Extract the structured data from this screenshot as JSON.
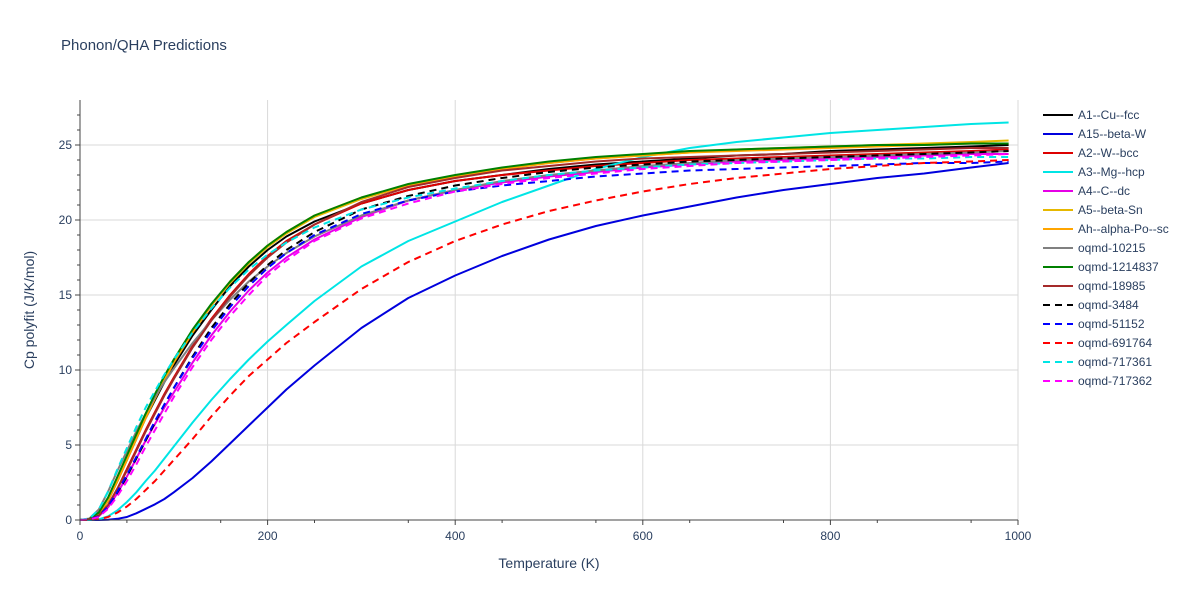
{
  "chart_data": {
    "type": "line",
    "title": "Phonon/QHA Predictions",
    "xlabel": "Temperature (K)",
    "ylabel": "Cp polyfit (J/K/mol)",
    "xlim": [
      0,
      1000
    ],
    "ylim": [
      0,
      28
    ],
    "x_ticks": [
      0,
      200,
      400,
      600,
      800,
      1000
    ],
    "y_ticks": [
      0,
      5,
      10,
      15,
      20,
      25
    ],
    "grid": true,
    "legend_position": "right",
    "x": [
      0,
      10,
      20,
      30,
      40,
      50,
      60,
      70,
      80,
      90,
      100,
      120,
      140,
      160,
      180,
      200,
      220,
      250,
      300,
      350,
      400,
      450,
      500,
      550,
      600,
      650,
      700,
      750,
      800,
      850,
      900,
      950,
      990
    ],
    "series": [
      {
        "name": "A1--Cu--fcc",
        "color": "#000000",
        "dash": "solid",
        "values": [
          0,
          0.05,
          0.4,
          1.3,
          2.6,
          4.0,
          5.4,
          6.8,
          8.0,
          9.2,
          10.3,
          12.3,
          14.0,
          15.6,
          16.9,
          18.0,
          18.9,
          19.9,
          21.1,
          22.0,
          22.6,
          23.0,
          23.4,
          23.7,
          23.9,
          24.1,
          24.3,
          24.4,
          24.6,
          24.7,
          24.8,
          24.9,
          25.0
        ]
      },
      {
        "name": "A15--beta-W",
        "color": "#0000dd",
        "dash": "solid",
        "values": [
          0,
          0,
          0,
          0.02,
          0.08,
          0.2,
          0.45,
          0.75,
          1.05,
          1.4,
          1.85,
          2.8,
          3.9,
          5.1,
          6.3,
          7.5,
          8.7,
          10.3,
          12.8,
          14.8,
          16.3,
          17.6,
          18.7,
          19.6,
          20.3,
          20.9,
          21.5,
          22.0,
          22.4,
          22.8,
          23.1,
          23.5,
          23.8
        ]
      },
      {
        "name": "A2--W--bcc",
        "color": "#dd0000",
        "dash": "solid",
        "values": [
          0,
          0.04,
          0.3,
          1.0,
          2.1,
          3.4,
          4.7,
          6.0,
          7.2,
          8.4,
          9.5,
          11.6,
          13.4,
          15.0,
          16.4,
          17.6,
          18.6,
          19.7,
          21.1,
          22.0,
          22.6,
          23.0,
          23.3,
          23.6,
          23.8,
          24.0,
          24.1,
          24.2,
          24.3,
          24.4,
          24.5,
          24.6,
          24.7
        ]
      },
      {
        "name": "A3--Mg--hcp",
        "color": "#00e5e5",
        "dash": "solid",
        "values": [
          0,
          0,
          0.05,
          0.25,
          0.65,
          1.2,
          1.85,
          2.6,
          3.3,
          4.1,
          4.9,
          6.5,
          8.0,
          9.4,
          10.7,
          11.9,
          13.0,
          14.6,
          16.9,
          18.6,
          19.9,
          21.2,
          22.3,
          23.4,
          24.2,
          24.8,
          25.2,
          25.5,
          25.8,
          26.0,
          26.2,
          26.4,
          26.5
        ]
      },
      {
        "name": "A4--C--dc",
        "color": "#e600e6",
        "dash": "solid",
        "values": [
          0,
          0.03,
          0.25,
          0.85,
          1.8,
          2.9,
          4.1,
          5.3,
          6.4,
          7.5,
          8.5,
          10.5,
          12.3,
          13.9,
          15.3,
          16.5,
          17.5,
          18.7,
          20.2,
          21.3,
          22.0,
          22.5,
          22.9,
          23.2,
          23.5,
          23.7,
          23.9,
          24.0,
          24.1,
          24.2,
          24.3,
          24.4,
          24.4
        ]
      },
      {
        "name": "A5--beta-Sn",
        "color": "#e6b800",
        "dash": "solid",
        "values": [
          0,
          0.06,
          0.45,
          1.4,
          2.8,
          4.2,
          5.6,
          7.0,
          8.3,
          9.5,
          10.6,
          12.6,
          14.3,
          15.8,
          17.1,
          18.2,
          19.1,
          20.2,
          21.4,
          22.3,
          22.9,
          23.4,
          23.8,
          24.1,
          24.3,
          24.5,
          24.7,
          24.8,
          24.9,
          25.0,
          25.1,
          25.2,
          25.3
        ]
      },
      {
        "name": "Ah--alpha-Po--sc",
        "color": "#ffa500",
        "dash": "solid",
        "values": [
          0,
          0.05,
          0.4,
          1.3,
          2.6,
          4.0,
          5.4,
          6.8,
          8.1,
          9.3,
          10.5,
          12.5,
          14.3,
          15.9,
          17.2,
          18.3,
          19.2,
          20.3,
          21.5,
          22.3,
          22.9,
          23.4,
          23.8,
          24.1,
          24.3,
          24.5,
          24.6,
          24.7,
          24.8,
          24.9,
          25.0,
          25.1,
          25.1
        ]
      },
      {
        "name": "oqmd-10215",
        "color": "#808080",
        "dash": "solid",
        "values": [
          0,
          0.1,
          0.7,
          1.9,
          3.3,
          4.6,
          5.9,
          7.1,
          8.2,
          9.2,
          10.1,
          11.8,
          13.3,
          14.7,
          15.9,
          16.9,
          17.8,
          18.9,
          20.3,
          21.3,
          22.0,
          22.6,
          23.0,
          23.3,
          23.6,
          23.8,
          24.0,
          24.1,
          24.2,
          24.3,
          24.4,
          24.5,
          24.6
        ]
      },
      {
        "name": "oqmd-1214837",
        "color": "#008000",
        "dash": "solid",
        "values": [
          0,
          0.06,
          0.5,
          1.5,
          2.9,
          4.3,
          5.7,
          7.1,
          8.4,
          9.6,
          10.7,
          12.7,
          14.4,
          15.9,
          17.2,
          18.3,
          19.2,
          20.3,
          21.5,
          22.4,
          23.0,
          23.5,
          23.9,
          24.2,
          24.4,
          24.6,
          24.7,
          24.8,
          24.9,
          25.0,
          25.0,
          25.1,
          25.1
        ]
      },
      {
        "name": "oqmd-18985",
        "color": "#a52a2a",
        "dash": "solid",
        "values": [
          0,
          0.04,
          0.3,
          1.0,
          2.1,
          3.3,
          4.6,
          5.9,
          7.1,
          8.3,
          9.4,
          11.5,
          13.3,
          14.9,
          16.3,
          17.5,
          18.5,
          19.7,
          21.2,
          22.2,
          22.8,
          23.3,
          23.6,
          23.9,
          24.1,
          24.2,
          24.3,
          24.4,
          24.5,
          24.6,
          24.7,
          24.8,
          24.8
        ]
      },
      {
        "name": "oqmd-3484",
        "color": "#000000",
        "dash": "dash",
        "values": [
          0,
          0.03,
          0.25,
          0.85,
          1.8,
          2.9,
          4.1,
          5.3,
          6.5,
          7.7,
          8.8,
          10.9,
          12.8,
          14.4,
          15.8,
          17.0,
          18.0,
          19.2,
          20.7,
          21.6,
          22.3,
          22.8,
          23.2,
          23.5,
          23.7,
          23.9,
          24.0,
          24.1,
          24.2,
          24.3,
          24.4,
          24.5,
          24.6
        ]
      },
      {
        "name": "oqmd-51152",
        "color": "#0000ff",
        "dash": "dash",
        "values": [
          0,
          0.03,
          0.25,
          0.9,
          1.9,
          3.0,
          4.2,
          5.4,
          6.6,
          7.7,
          8.8,
          10.8,
          12.6,
          14.2,
          15.6,
          16.8,
          17.8,
          19.0,
          20.4,
          21.3,
          21.9,
          22.3,
          22.6,
          22.9,
          23.1,
          23.3,
          23.4,
          23.5,
          23.6,
          23.7,
          23.8,
          23.8,
          23.9
        ]
      },
      {
        "name": "oqmd-691764",
        "color": "#ff0000",
        "dash": "dash",
        "values": [
          0,
          0,
          0.05,
          0.2,
          0.5,
          0.9,
          1.4,
          2.0,
          2.6,
          3.3,
          4.0,
          5.4,
          6.9,
          8.3,
          9.6,
          10.7,
          11.8,
          13.2,
          15.4,
          17.2,
          18.6,
          19.7,
          20.6,
          21.3,
          21.9,
          22.4,
          22.8,
          23.1,
          23.4,
          23.6,
          23.8,
          23.9,
          24.0
        ]
      },
      {
        "name": "oqmd-717361",
        "color": "#00e5e5",
        "dash": "dash",
        "values": [
          0,
          0.1,
          0.7,
          1.9,
          3.4,
          4.8,
          6.2,
          7.5,
          8.6,
          9.7,
          10.7,
          12.5,
          14.1,
          15.5,
          16.7,
          17.7,
          18.5,
          19.5,
          20.7,
          21.5,
          22.1,
          22.6,
          23.0,
          23.3,
          23.5,
          23.7,
          23.8,
          23.9,
          24.0,
          24.1,
          24.1,
          24.2,
          24.2
        ]
      },
      {
        "name": "oqmd-717362",
        "color": "#ff00ff",
        "dash": "dash",
        "values": [
          0,
          0.03,
          0.2,
          0.75,
          1.6,
          2.6,
          3.7,
          4.9,
          6.0,
          7.1,
          8.2,
          10.2,
          12.0,
          13.6,
          15.0,
          16.3,
          17.3,
          18.6,
          20.1,
          21.1,
          21.9,
          22.4,
          22.8,
          23.1,
          23.4,
          23.6,
          23.8,
          23.9,
          24.0,
          24.1,
          24.2,
          24.3,
          24.4
        ]
      }
    ]
  }
}
